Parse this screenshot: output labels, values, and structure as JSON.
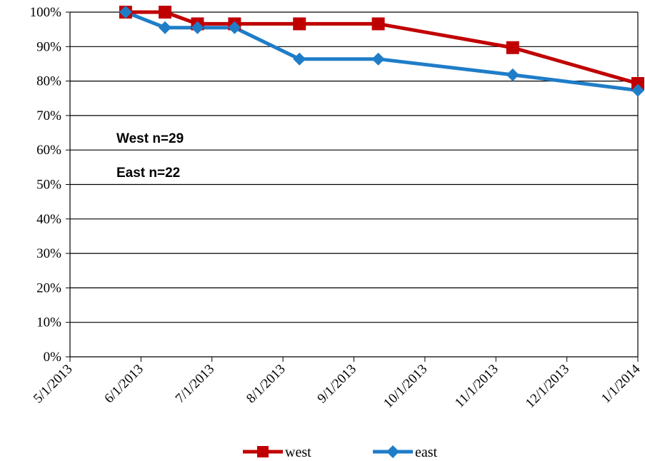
{
  "chart_data": {
    "type": "line",
    "title": "",
    "xlabel": "",
    "ylabel": "",
    "x_ticks": [
      "5/1/2013",
      "6/1/2013",
      "7/1/2013",
      "8/1/2013",
      "9/1/2013",
      "10/1/2013",
      "11/1/2013",
      "12/1/2013",
      "1/1/2014"
    ],
    "y_ticks": [
      "0%",
      "10%",
      "20%",
      "30%",
      "40%",
      "50%",
      "60%",
      "70%",
      "80%",
      "90%",
      "100%"
    ],
    "xlim": [
      "2013-05-01",
      "2014-01-01"
    ],
    "ylim": [
      0,
      100
    ],
    "grid": "horizontal",
    "legend_position": "bottom",
    "annotations": [
      "West  n=29",
      "East  n=22"
    ],
    "series": [
      {
        "name": "west",
        "color": "#C00000",
        "marker": "square",
        "x": [
          "2013-05-25",
          "2013-06-11",
          "2013-06-25",
          "2013-07-11",
          "2013-08-08",
          "2013-09-11",
          "2013-11-08",
          "2014-01-01"
        ],
        "y": [
          100,
          100,
          96.6,
          96.6,
          96.6,
          96.6,
          89.7,
          79.3
        ]
      },
      {
        "name": "east",
        "color": "#1F7DC8",
        "marker": "diamond",
        "x": [
          "2013-05-25",
          "2013-06-11",
          "2013-06-25",
          "2013-07-11",
          "2013-08-08",
          "2013-09-11",
          "2013-11-08",
          "2014-01-01"
        ],
        "y": [
          100,
          95.5,
          95.5,
          95.5,
          86.4,
          86.4,
          81.8,
          77.3
        ]
      }
    ]
  }
}
